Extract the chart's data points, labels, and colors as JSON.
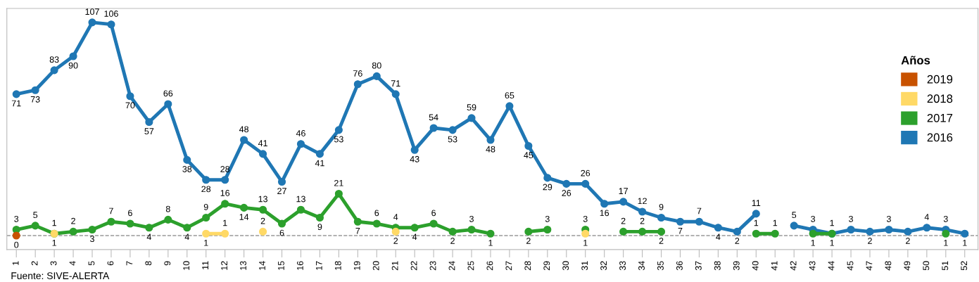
{
  "chart_data": {
    "type": "line",
    "legend_title": "Años",
    "legend": "right",
    "marker": "circle",
    "line_style": "solid",
    "data_labels": true,
    "grid": false,
    "ylim": [
      -7,
      114
    ],
    "tick_labels": "x",
    "categories": [
      "1",
      "2",
      "3",
      "4",
      "5",
      "6",
      "7",
      "8",
      "9",
      "10",
      "11",
      "12",
      "13",
      "14",
      "15",
      "16",
      "17",
      "18",
      "19",
      "20",
      "21",
      "22",
      "23",
      "24",
      "25",
      "26",
      "27",
      "28",
      "29",
      "30",
      "31",
      "32",
      "33",
      "34",
      "35",
      "36",
      "37",
      "38",
      "39",
      "40",
      "41",
      "42",
      "43",
      "44",
      "45",
      "47",
      "48",
      "49",
      "50",
      "51",
      "52"
    ],
    "series": [
      {
        "name": "2019",
        "color": "#c85200",
        "values": [
          0,
          null,
          null,
          null,
          null,
          null,
          null,
          null,
          null,
          null,
          null,
          null,
          null,
          null,
          null,
          null,
          null,
          null,
          null,
          null,
          null,
          null,
          null,
          null,
          null,
          null,
          null,
          null,
          null,
          null,
          null,
          null,
          null,
          null,
          null,
          null,
          null,
          null,
          null,
          null,
          null,
          null,
          null,
          null,
          null,
          null,
          null,
          null,
          null,
          null,
          null
        ]
      },
      {
        "name": "2018",
        "color": "#ffd966",
        "values": [
          null,
          null,
          1,
          null,
          null,
          null,
          null,
          null,
          null,
          null,
          1,
          1,
          null,
          2,
          null,
          null,
          null,
          null,
          null,
          null,
          2,
          null,
          null,
          null,
          null,
          null,
          null,
          null,
          null,
          null,
          1,
          null,
          null,
          null,
          null,
          null,
          null,
          null,
          null,
          null,
          null,
          null,
          null,
          null,
          null,
          null,
          null,
          null,
          null,
          null,
          null
        ]
      },
      {
        "name": "2017",
        "color": "#2ca02c",
        "values": [
          3,
          5,
          1,
          2,
          3,
          7,
          6,
          4,
          8,
          4,
          9,
          16,
          14,
          13,
          6,
          13,
          9,
          21,
          7,
          6,
          4,
          4,
          6,
          2,
          3,
          1,
          null,
          2,
          3,
          null,
          3,
          null,
          2,
          2,
          2,
          null,
          null,
          null,
          null,
          1,
          1,
          null,
          1,
          1,
          null,
          null,
          null,
          null,
          null,
          1,
          null
        ]
      },
      {
        "name": "2016",
        "color": "#1f77b4",
        "values": [
          71,
          73,
          83,
          90,
          107,
          106,
          70,
          57,
          66,
          38,
          28,
          28,
          48,
          41,
          27,
          46,
          41,
          53,
          76,
          80,
          71,
          43,
          54,
          53,
          59,
          48,
          65,
          45,
          29,
          26,
          26,
          16,
          17,
          12,
          9,
          7,
          7,
          4,
          2,
          11,
          null,
          5,
          3,
          1,
          3,
          2,
          3,
          2,
          4,
          3,
          1
        ]
      }
    ],
    "ref_lines": [
      {
        "axis": "y",
        "value": 0,
        "color": "#999999",
        "line_style": "dashed"
      }
    ],
    "annotations": [
      "Fuente: SIVE-ALERTA"
    ]
  }
}
